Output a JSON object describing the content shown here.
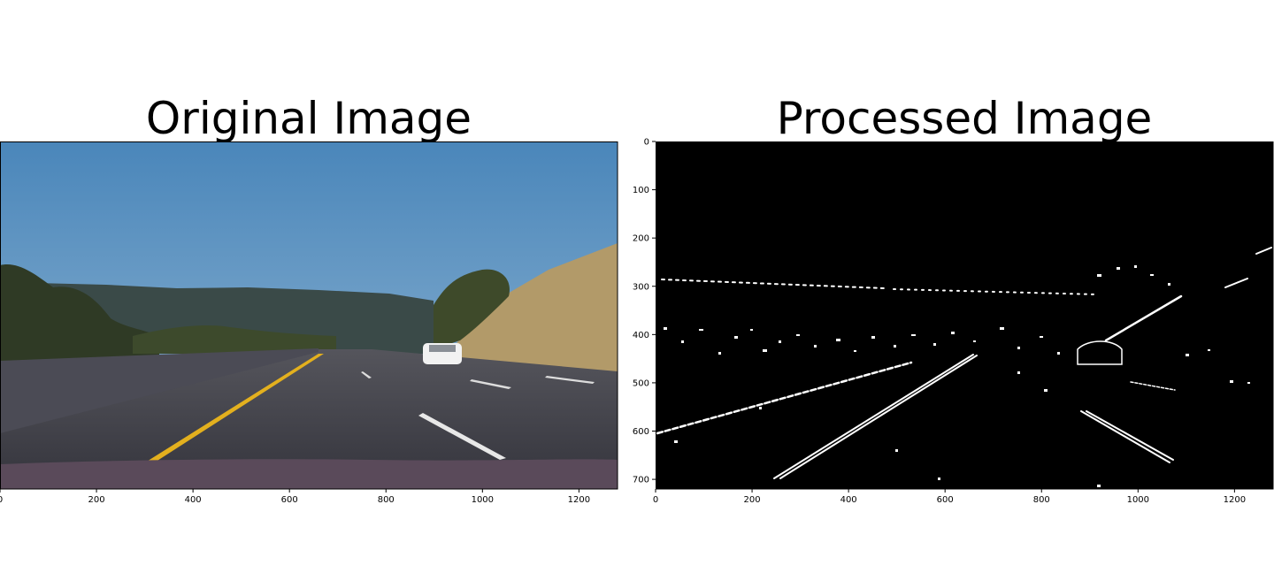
{
  "panels": [
    {
      "title": "Original Image",
      "x_ticks": [
        0,
        200,
        400,
        600,
        800,
        1000,
        1200
      ],
      "y_ticks": [],
      "image_width": 1280,
      "image_height": 720
    },
    {
      "title": "Processed Image",
      "x_ticks": [
        0,
        200,
        400,
        600,
        800,
        1000,
        1200
      ],
      "y_ticks": [
        0,
        100,
        200,
        300,
        400,
        500,
        600,
        700
      ],
      "image_width": 1280,
      "image_height": 720
    }
  ],
  "colors": {
    "sky_top": "#4f8cbe",
    "sky_bottom": "#8fb4d3",
    "road": "#3f3f48",
    "yellow_line": "#e8b51c",
    "hill": "#b59a66",
    "edge": "#ffffff",
    "background": "#000000"
  }
}
